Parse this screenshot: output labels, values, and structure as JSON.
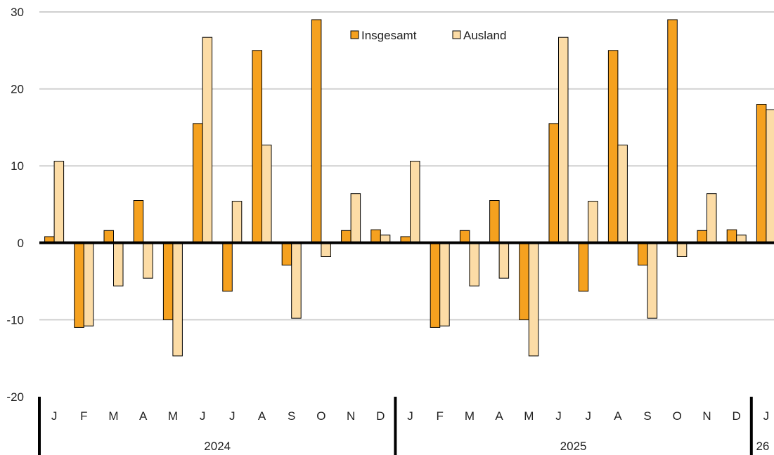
{
  "chart_data": {
    "type": "bar",
    "ylim": [
      -20,
      30
    ],
    "yticks": [
      30,
      20,
      10,
      0,
      -10,
      -20
    ],
    "grid": true,
    "legend_position": "top-center",
    "categories": [
      "J",
      "F",
      "M",
      "A",
      "M",
      "J",
      "J",
      "A",
      "S",
      "O",
      "N",
      "D",
      "J",
      "F",
      "M",
      "A",
      "M",
      "J",
      "J",
      "A",
      "S",
      "O",
      "N",
      "D",
      "J"
    ],
    "groups": [
      {
        "label": "2024",
        "count": 12
      },
      {
        "label": "2025",
        "count": 12
      },
      {
        "label": "26",
        "count": 1
      }
    ],
    "series": [
      {
        "name": "Insgesamt",
        "color": "#f5a11f",
        "values": [
          0.8,
          -11.0,
          1.6,
          5.5,
          -10.0,
          15.5,
          -6.3,
          25.0,
          -2.9,
          29.0,
          1.6,
          1.7,
          0.8,
          -11.0,
          1.6,
          5.5,
          -10.0,
          15.5,
          -6.3,
          25.0,
          -2.9,
          29.0,
          1.6,
          1.7,
          18.0
        ]
      },
      {
        "name": "Ausland",
        "color": "#fcdca6",
        "values": [
          10.6,
          -10.8,
          -5.6,
          -4.6,
          -14.7,
          26.7,
          5.4,
          12.7,
          -9.8,
          -1.8,
          6.4,
          1.0,
          10.6,
          -10.8,
          -5.6,
          -4.6,
          -14.7,
          26.7,
          5.4,
          12.7,
          -9.8,
          -1.8,
          6.4,
          1.0,
          17.3
        ]
      }
    ]
  }
}
